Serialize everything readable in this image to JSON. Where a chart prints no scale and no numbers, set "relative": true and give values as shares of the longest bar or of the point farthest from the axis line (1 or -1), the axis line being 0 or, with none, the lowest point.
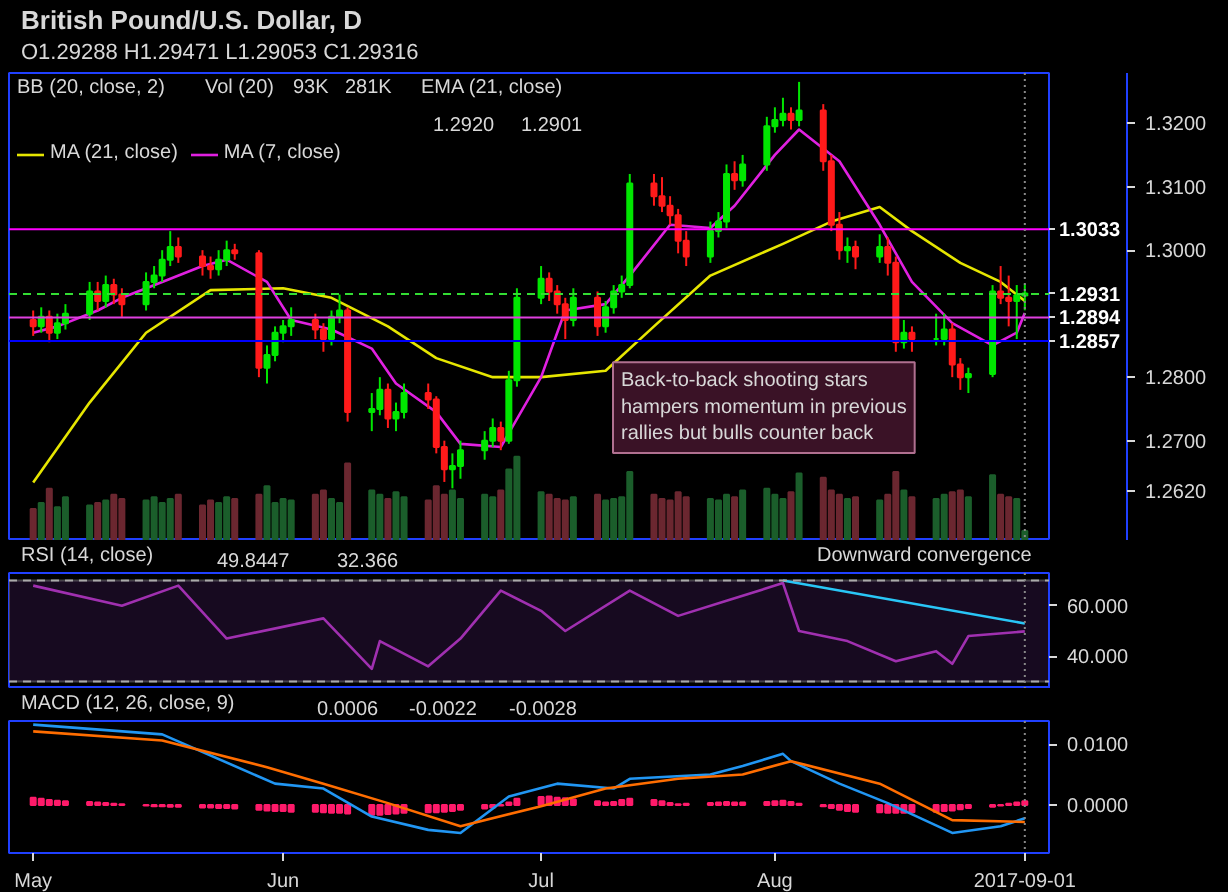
{
  "chart_data": [
    {
      "type": "candlestick",
      "title": "British Pound/U.S. Dollar, D",
      "subtitle": "O1.29288 H1.29471 L1.29053 C1.29316",
      "x": [
        "2017-05-01",
        "2017-05-02",
        "2017-05-03",
        "2017-05-04",
        "2017-05-05",
        "2017-05-08",
        "2017-05-09",
        "2017-05-10",
        "2017-05-11",
        "2017-05-12",
        "2017-05-15",
        "2017-05-16",
        "2017-05-17",
        "2017-05-18",
        "2017-05-19",
        "2017-05-22",
        "2017-05-23",
        "2017-05-24",
        "2017-05-25",
        "2017-05-26",
        "2017-05-29",
        "2017-05-30",
        "2017-05-31",
        "2017-06-01",
        "2017-06-02",
        "2017-06-05",
        "2017-06-06",
        "2017-06-07",
        "2017-06-08",
        "2017-06-09",
        "2017-06-12",
        "2017-06-13",
        "2017-06-14",
        "2017-06-15",
        "2017-06-16",
        "2017-06-19",
        "2017-06-20",
        "2017-06-21",
        "2017-06-22",
        "2017-06-23",
        "2017-06-26",
        "2017-06-27",
        "2017-06-28",
        "2017-06-29",
        "2017-06-30",
        "2017-07-03",
        "2017-07-04",
        "2017-07-05",
        "2017-07-06",
        "2017-07-07",
        "2017-07-10",
        "2017-07-11",
        "2017-07-12",
        "2017-07-13",
        "2017-07-14",
        "2017-07-17",
        "2017-07-18",
        "2017-07-19",
        "2017-07-20",
        "2017-07-21",
        "2017-07-24",
        "2017-07-25",
        "2017-07-26",
        "2017-07-27",
        "2017-07-28",
        "2017-07-31",
        "2017-08-01",
        "2017-08-02",
        "2017-08-03",
        "2017-08-04",
        "2017-08-07",
        "2017-08-08",
        "2017-08-09",
        "2017-08-10",
        "2017-08-11",
        "2017-08-14",
        "2017-08-15",
        "2017-08-16",
        "2017-08-17",
        "2017-08-18",
        "2017-08-21",
        "2017-08-22",
        "2017-08-23",
        "2017-08-24",
        "2017-08-25",
        "2017-08-28",
        "2017-08-29",
        "2017-08-30",
        "2017-08-31",
        "2017-09-01"
      ],
      "ohlc": [
        [
          1.289,
          1.2905,
          1.2865,
          1.288
        ],
        [
          1.288,
          1.291,
          1.287,
          1.2895
        ],
        [
          1.2895,
          1.2905,
          1.2855,
          1.287
        ],
        [
          1.287,
          1.29,
          1.286,
          1.2885
        ],
        [
          1.2885,
          1.2915,
          1.2875,
          1.29
        ],
        [
          1.29,
          1.295,
          1.289,
          1.2935
        ],
        [
          1.2935,
          1.295,
          1.2905,
          1.292
        ],
        [
          1.292,
          1.296,
          1.291,
          1.2945
        ],
        [
          1.2945,
          1.2955,
          1.2915,
          1.293
        ],
        [
          1.293,
          1.294,
          1.2895,
          1.2915
        ],
        [
          1.2915,
          1.2965,
          1.2905,
          1.295
        ],
        [
          1.295,
          1.2975,
          1.294,
          1.296
        ],
        [
          1.296,
          1.3,
          1.295,
          1.2985
        ],
        [
          1.2985,
          1.303,
          1.2975,
          1.3005
        ],
        [
          1.3005,
          1.302,
          1.298,
          1.299
        ],
        [
          1.299,
          1.3,
          1.296,
          1.2975
        ],
        [
          1.2975,
          1.299,
          1.2955,
          1.297
        ],
        [
          1.297,
          1.3,
          1.296,
          1.2985
        ],
        [
          1.2985,
          1.3015,
          1.2975,
          1.3
        ],
        [
          1.3,
          1.301,
          1.2985,
          1.2995
        ],
        [
          1.2995,
          1.3,
          1.28,
          1.2815
        ],
        [
          1.2815,
          1.285,
          1.279,
          1.2835
        ],
        [
          1.2835,
          1.288,
          1.2825,
          1.287
        ],
        [
          1.287,
          1.289,
          1.2855,
          1.288
        ],
        [
          1.288,
          1.291,
          1.2865,
          1.289
        ],
        [
          1.289,
          1.29,
          1.286,
          1.2875
        ],
        [
          1.2875,
          1.2885,
          1.284,
          1.286
        ],
        [
          1.286,
          1.2905,
          1.285,
          1.2895
        ],
        [
          1.2895,
          1.293,
          1.2885,
          1.2905
        ],
        [
          1.2905,
          1.291,
          1.273,
          1.2745
        ],
        [
          1.2745,
          1.2775,
          1.2715,
          1.275
        ],
        [
          1.275,
          1.28,
          1.274,
          1.278
        ],
        [
          1.278,
          1.279,
          1.272,
          1.2735
        ],
        [
          1.2735,
          1.276,
          1.2715,
          1.2745
        ],
        [
          1.2745,
          1.279,
          1.2735,
          1.2775
        ],
        [
          1.2775,
          1.279,
          1.275,
          1.2765
        ],
        [
          1.2765,
          1.277,
          1.268,
          1.269
        ],
        [
          1.269,
          1.27,
          1.2635,
          1.2655
        ],
        [
          1.2655,
          1.268,
          1.2625,
          1.266
        ],
        [
          1.266,
          1.27,
          1.264,
          1.2685
        ],
        [
          1.2685,
          1.2715,
          1.267,
          1.27
        ],
        [
          1.27,
          1.2735,
          1.269,
          1.272
        ],
        [
          1.272,
          1.273,
          1.2685,
          1.27
        ],
        [
          1.27,
          1.281,
          1.2695,
          1.2795
        ],
        [
          1.2795,
          1.294,
          1.2785,
          1.2925
        ],
        [
          1.2925,
          1.2975,
          1.2915,
          1.2955
        ],
        [
          1.2955,
          1.2965,
          1.292,
          1.2935
        ],
        [
          1.2935,
          1.2945,
          1.29,
          1.2915
        ],
        [
          1.2915,
          1.2925,
          1.286,
          1.289
        ],
        [
          1.289,
          1.294,
          1.288,
          1.2925
        ],
        [
          1.2925,
          1.2935,
          1.2865,
          1.288
        ],
        [
          1.288,
          1.292,
          1.287,
          1.291
        ],
        [
          1.291,
          1.2945,
          1.29,
          1.2935
        ],
        [
          1.2935,
          1.296,
          1.2925,
          1.2945
        ],
        [
          1.2945,
          1.312,
          1.294,
          1.3105
        ],
        [
          1.3105,
          1.312,
          1.307,
          1.3085
        ],
        [
          1.3085,
          1.3115,
          1.306,
          1.307
        ],
        [
          1.307,
          1.3085,
          1.304,
          1.3055
        ],
        [
          1.3055,
          1.3065,
          1.2995,
          1.3015
        ],
        [
          1.3015,
          1.303,
          1.2975,
          1.299
        ],
        [
          1.299,
          1.3045,
          1.298,
          1.303
        ],
        [
          1.303,
          1.306,
          1.302,
          1.3045
        ],
        [
          1.3045,
          1.3135,
          1.3035,
          1.312
        ],
        [
          1.312,
          1.314,
          1.3095,
          1.311
        ],
        [
          1.311,
          1.315,
          1.31,
          1.3135
        ],
        [
          1.3135,
          1.321,
          1.3125,
          1.3195
        ],
        [
          1.3195,
          1.3225,
          1.3185,
          1.3205
        ],
        [
          1.3205,
          1.324,
          1.3195,
          1.3215
        ],
        [
          1.3215,
          1.3225,
          1.319,
          1.3205
        ],
        [
          1.3205,
          1.3265,
          1.3195,
          1.322
        ],
        [
          1.322,
          1.323,
          1.3125,
          1.314
        ],
        [
          1.314,
          1.315,
          1.303,
          1.304
        ],
        [
          1.304,
          1.306,
          1.2985,
          1.3
        ],
        [
          1.3,
          1.302,
          1.298,
          1.3005
        ],
        [
          1.3005,
          1.3015,
          1.297,
          1.299
        ],
        [
          1.299,
          1.3025,
          1.298,
          1.3005
        ],
        [
          1.3005,
          1.302,
          1.296,
          1.298
        ],
        [
          1.298,
          1.299,
          1.284,
          1.2855
        ],
        [
          1.2855,
          1.289,
          1.2845,
          1.287
        ],
        [
          1.287,
          1.288,
          1.284,
          1.286
        ],
        [
          1.286,
          1.29,
          1.285,
          1.286
        ],
        [
          1.286,
          1.29,
          1.285,
          1.2875
        ],
        [
          1.2875,
          1.2885,
          1.28,
          1.282
        ],
        [
          1.282,
          1.283,
          1.278,
          1.28
        ],
        [
          1.28,
          1.2815,
          1.2775,
          1.2805
        ],
        [
          1.2805,
          1.2945,
          1.28,
          1.2935
        ],
        [
          1.2935,
          1.2975,
          1.2915,
          1.2925
        ],
        [
          1.2925,
          1.296,
          1.288,
          1.292
        ],
        [
          1.292,
          1.2945,
          1.286,
          1.2929
        ],
        [
          1.29288,
          1.29471,
          1.29053,
          1.29316
        ]
      ],
      "colors": [
        "#ff1a1a",
        "#00e600",
        "#ff1a1a",
        "#00e600",
        "#00e600",
        "#00e600",
        "#ff1a1a",
        "#00e600",
        "#ff1a1a",
        "#ff1a1a",
        "#00e600",
        "#00e600",
        "#00e600",
        "#00e600",
        "#ff1a1a",
        "#ff1a1a",
        "#ff1a1a",
        "#00e600",
        "#00e600",
        "#ff1a1a",
        "#ff1a1a",
        "#00e600",
        "#00e600",
        "#00e600",
        "#00e600",
        "#ff1a1a",
        "#ff1a1a",
        "#00e600",
        "#00e600",
        "#ff1a1a",
        "#00e600",
        "#00e600",
        "#ff1a1a",
        "#00e600",
        "#00e600",
        "#ff1a1a",
        "#ff1a1a",
        "#ff1a1a",
        "#00e600",
        "#00e600",
        "#00e600",
        "#00e600",
        "#ff1a1a",
        "#00e600",
        "#00e600",
        "#00e600",
        "#ff1a1a",
        "#ff1a1a",
        "#ff1a1a",
        "#00e600",
        "#ff1a1a",
        "#00e600",
        "#00e600",
        "#00e600",
        "#00e600",
        "#ff1a1a",
        "#ff1a1a",
        "#ff1a1a",
        "#ff1a1a",
        "#ff1a1a",
        "#00e600",
        "#00e600",
        "#00e600",
        "#ff1a1a",
        "#00e600",
        "#00e600",
        "#00e600",
        "#00e600",
        "#ff1a1a",
        "#00e600",
        "#ff1a1a",
        "#ff1a1a",
        "#ff1a1a",
        "#00e600",
        "#ff1a1a",
        "#00e600",
        "#ff1a1a",
        "#ff1a1a",
        "#00e600",
        "#ff1a1a",
        "#00e600",
        "#00e600",
        "#ff1a1a",
        "#ff1a1a",
        "#00e600",
        "#00e600",
        "#ff1a1a",
        "#ff1a1a",
        "#00e600",
        "#00e600"
      ],
      "series": [
        {
          "type": "line",
          "name": "MA (21, close)",
          "color": "#e6e600",
          "x": [
            "2017-05-01",
            "2017-05-08",
            "2017-05-15",
            "2017-05-23",
            "2017-06-01",
            "2017-06-07",
            "2017-06-14",
            "2017-06-20",
            "2017-06-27",
            "2017-07-03",
            "2017-07-11",
            "2017-07-17",
            "2017-07-24",
            "2017-08-02",
            "2017-08-08",
            "2017-08-14",
            "2017-08-18",
            "2017-08-24",
            "2017-08-29",
            "2017-09-01"
          ],
          "values": [
            1.2634,
            1.276,
            1.287,
            1.2937,
            1.294,
            1.2925,
            1.288,
            1.283,
            1.28,
            1.28,
            1.281,
            1.288,
            1.296,
            1.301,
            1.3045,
            1.3068,
            1.303,
            1.298,
            1.295,
            1.292
          ]
        },
        {
          "type": "line",
          "name": "MA (7, close)",
          "color": "#e020e0",
          "x": [
            "2017-05-01",
            "2017-05-04",
            "2017-05-09",
            "2017-05-12",
            "2017-05-17",
            "2017-05-22",
            "2017-05-25",
            "2017-05-30",
            "2017-06-02",
            "2017-06-07",
            "2017-06-12",
            "2017-06-15",
            "2017-06-20",
            "2017-06-23",
            "2017-06-28",
            "2017-07-03",
            "2017-07-06",
            "2017-07-11",
            "2017-07-14",
            "2017-07-19",
            "2017-07-24",
            "2017-07-27",
            "2017-08-01",
            "2017-08-04",
            "2017-08-09",
            "2017-08-14",
            "2017-08-18",
            "2017-08-23",
            "2017-08-28",
            "2017-08-31",
            "2017-09-01"
          ],
          "values": [
            1.287,
            1.288,
            1.2905,
            1.2925,
            1.295,
            1.2975,
            1.2985,
            1.295,
            1.289,
            1.2875,
            1.2845,
            1.279,
            1.2745,
            1.2695,
            1.269,
            1.28,
            1.2905,
            1.2915,
            1.296,
            1.304,
            1.3035,
            1.307,
            1.315,
            1.319,
            1.314,
            1.304,
            1.295,
            1.2885,
            1.285,
            1.287,
            1.2901
          ]
        }
      ],
      "xlim": [
        "2017-04-28",
        "2017-09-04"
      ],
      "ylim": [
        1.2542,
        1.3279
      ],
      "yticks": [
        {
          "value": 1.262,
          "label": "1.2620"
        },
        {
          "value": 1.27,
          "label": "1.2700"
        },
        {
          "value": 1.28,
          "label": "1.2800"
        },
        {
          "value": 1.3,
          "label": "1.3000"
        },
        {
          "value": 1.31,
          "label": "1.3100"
        },
        {
          "value": 1.32,
          "label": "1.3200"
        }
      ],
      "tick_labels": "y",
      "legend": "top left",
      "ref_lines": [
        {
          "axis": "y",
          "value": 1.3033,
          "label": "1.3033",
          "color": "#ff00ff",
          "line_style": "solid"
        },
        {
          "axis": "y",
          "value": 1.2931,
          "label": "1.2931",
          "color": "#33dd33",
          "line_style": "dashed"
        },
        {
          "axis": "y",
          "value": 1.2894,
          "label": "1.2894",
          "color": "#e040e0",
          "line_style": "solid"
        },
        {
          "axis": "y",
          "value": 1.2857,
          "label": "1.2857",
          "color": "#0000ff",
          "line_style": "solid"
        },
        {
          "axis": "x",
          "value": "2017-09-01",
          "color": "#888888",
          "line_style": "dotted"
        }
      ],
      "annotations": [
        "BB (20, close, 2)",
        "EMA (21, close)",
        "1.2920",
        "1.2901",
        "Back-to-back shooting stars hampers momentum in previous rallies but bulls counter back"
      ]
    },
    {
      "type": "bar",
      "relative": true,
      "tick_labels": false,
      "xlim": [
        "2017-04-28",
        "2017-09-04"
      ],
      "x": [
        "2017-05-01",
        "2017-05-02",
        "2017-05-03",
        "2017-05-04",
        "2017-05-05",
        "2017-05-08",
        "2017-05-09",
        "2017-05-10",
        "2017-05-11",
        "2017-05-12",
        "2017-05-15",
        "2017-05-16",
        "2017-05-17",
        "2017-05-18",
        "2017-05-19",
        "2017-05-22",
        "2017-05-23",
        "2017-05-24",
        "2017-05-25",
        "2017-05-26",
        "2017-05-29",
        "2017-05-30",
        "2017-05-31",
        "2017-06-01",
        "2017-06-02",
        "2017-06-05",
        "2017-06-06",
        "2017-06-07",
        "2017-06-08",
        "2017-06-09",
        "2017-06-12",
        "2017-06-13",
        "2017-06-14",
        "2017-06-15",
        "2017-06-16",
        "2017-06-19",
        "2017-06-20",
        "2017-06-21",
        "2017-06-22",
        "2017-06-23",
        "2017-06-26",
        "2017-06-27",
        "2017-06-28",
        "2017-06-29",
        "2017-06-30",
        "2017-07-03",
        "2017-07-04",
        "2017-07-05",
        "2017-07-06",
        "2017-07-07",
        "2017-07-10",
        "2017-07-11",
        "2017-07-12",
        "2017-07-13",
        "2017-07-14",
        "2017-07-17",
        "2017-07-18",
        "2017-07-19",
        "2017-07-20",
        "2017-07-21",
        "2017-07-24",
        "2017-07-25",
        "2017-07-26",
        "2017-07-27",
        "2017-07-28",
        "2017-07-31",
        "2017-08-01",
        "2017-08-02",
        "2017-08-03",
        "2017-08-04",
        "2017-08-07",
        "2017-08-08",
        "2017-08-09",
        "2017-08-10",
        "2017-08-11",
        "2017-08-14",
        "2017-08-15",
        "2017-08-16",
        "2017-08-17",
        "2017-08-18",
        "2017-08-21",
        "2017-08-22",
        "2017-08-23",
        "2017-08-24",
        "2017-08-25",
        "2017-08-28",
        "2017-08-29",
        "2017-08-30",
        "2017-08-31",
        "2017-09-01"
      ],
      "values": [
        0.38,
        0.45,
        0.62,
        0.4,
        0.52,
        0.42,
        0.45,
        0.48,
        0.55,
        0.5,
        0.48,
        0.52,
        0.45,
        0.5,
        0.55,
        0.42,
        0.48,
        0.45,
        0.52,
        0.5,
        0.55,
        0.65,
        0.45,
        0.5,
        0.48,
        0.55,
        0.6,
        0.5,
        0.45,
        0.92,
        0.6,
        0.55,
        0.5,
        0.58,
        0.52,
        0.48,
        0.65,
        0.55,
        0.6,
        0.5,
        0.55,
        0.52,
        0.6,
        0.85,
        1.0,
        0.58,
        0.55,
        0.5,
        0.48,
        0.52,
        0.55,
        0.48,
        0.5,
        0.52,
        0.82,
        0.55,
        0.5,
        0.48,
        0.58,
        0.52,
        0.5,
        0.48,
        0.55,
        0.52,
        0.6,
        0.62,
        0.55,
        0.5,
        0.58,
        0.8,
        0.75,
        0.6,
        0.55,
        0.5,
        0.52,
        0.48,
        0.55,
        0.82,
        0.6,
        0.52,
        0.5,
        0.55,
        0.58,
        0.6,
        0.52,
        0.78,
        0.55,
        0.52,
        0.5,
        0.12
      ],
      "colors": [
        "#6b2730",
        "#1b5e2b",
        "#6b2730",
        "#1b5e2b",
        "#1b5e2b",
        "#1b5e2b",
        "#6b2730",
        "#1b5e2b",
        "#6b2730",
        "#6b2730",
        "#1b5e2b",
        "#1b5e2b",
        "#1b5e2b",
        "#1b5e2b",
        "#6b2730",
        "#6b2730",
        "#6b2730",
        "#1b5e2b",
        "#1b5e2b",
        "#6b2730",
        "#6b2730",
        "#1b5e2b",
        "#1b5e2b",
        "#1b5e2b",
        "#1b5e2b",
        "#6b2730",
        "#6b2730",
        "#1b5e2b",
        "#1b5e2b",
        "#6b2730",
        "#1b5e2b",
        "#1b5e2b",
        "#6b2730",
        "#1b5e2b",
        "#1b5e2b",
        "#6b2730",
        "#6b2730",
        "#6b2730",
        "#1b5e2b",
        "#1b5e2b",
        "#1b5e2b",
        "#1b5e2b",
        "#6b2730",
        "#1b5e2b",
        "#1b5e2b",
        "#1b5e2b",
        "#6b2730",
        "#6b2730",
        "#6b2730",
        "#1b5e2b",
        "#6b2730",
        "#1b5e2b",
        "#1b5e2b",
        "#1b5e2b",
        "#1b5e2b",
        "#6b2730",
        "#6b2730",
        "#6b2730",
        "#6b2730",
        "#6b2730",
        "#1b5e2b",
        "#1b5e2b",
        "#1b5e2b",
        "#6b2730",
        "#1b5e2b",
        "#1b5e2b",
        "#1b5e2b",
        "#1b5e2b",
        "#6b2730",
        "#1b5e2b",
        "#6b2730",
        "#6b2730",
        "#6b2730",
        "#1b5e2b",
        "#6b2730",
        "#1b5e2b",
        "#6b2730",
        "#6b2730",
        "#1b5e2b",
        "#6b2730",
        "#1b5e2b",
        "#1b5e2b",
        "#6b2730",
        "#6b2730",
        "#1b5e2b",
        "#1b5e2b",
        "#6b2730",
        "#6b2730",
        "#1b5e2b",
        "#1b5e2b"
      ],
      "annotations": [
        "Vol (20)",
        "93K",
        "281K"
      ]
    },
    {
      "type": "line",
      "title": "RSI (14, close)",
      "xlim": [
        "2017-04-28",
        "2017-09-04"
      ],
      "ylim": [
        27,
        73
      ],
      "yticks": [
        {
          "value": 40,
          "label": "40.000"
        },
        {
          "value": 60,
          "label": "60.000"
        }
      ],
      "tick_labels": "y",
      "series": [
        {
          "color": "#a030b0",
          "x": [
            "2017-05-01",
            "2017-05-12",
            "2017-05-19",
            "2017-05-25",
            "2017-06-06",
            "2017-06-12",
            "2017-06-13",
            "2017-06-19",
            "2017-06-23",
            "2017-06-28",
            "2017-07-03",
            "2017-07-06",
            "2017-07-14",
            "2017-07-20",
            "2017-07-26",
            "2017-08-02",
            "2017-08-04",
            "2017-08-10",
            "2017-08-16",
            "2017-08-21",
            "2017-08-23",
            "2017-08-25",
            "2017-09-01"
          ],
          "values": [
            68,
            60,
            68,
            47,
            55,
            35,
            46,
            36,
            47,
            66,
            58,
            50,
            66,
            56,
            62,
            69,
            50,
            46,
            38,
            42,
            37,
            48,
            49.8447
          ]
        },
        {
          "color": "#29c6f6",
          "x": [
            "2017-08-02",
            "2017-09-01"
          ],
          "values": [
            70,
            53
          ]
        }
      ],
      "bands": [
        {
          "axis": "y",
          "from": 30,
          "to": 70,
          "color": "#170a20"
        }
      ],
      "ref_lines": [
        {
          "axis": "y",
          "value": 70,
          "color": "#aaaaaa",
          "line_style": "dashed"
        },
        {
          "axis": "y",
          "value": 30,
          "color": "#aaaaaa",
          "line_style": "dashed"
        },
        {
          "axis": "x",
          "value": "2017-09-01",
          "color": "#888888",
          "line_style": "dotted"
        }
      ],
      "annotations": [
        "49.8447",
        "32.366",
        "Downward convergence"
      ]
    },
    {
      "type": "line",
      "title": "MACD (12, 26, close, 9)",
      "xlim": [
        "2017-04-28",
        "2017-09-04"
      ],
      "ylim": [
        -0.0079,
        0.0138
      ],
      "xticks": [
        {
          "value": "2017-05-01",
          "label": "May"
        },
        {
          "value": "2017-06-01",
          "label": "Jun"
        },
        {
          "value": "2017-07-03",
          "label": "Jul"
        },
        {
          "value": "2017-08-01",
          "label": "Aug"
        },
        {
          "value": "2017-09-01",
          "label": "2017-09-01"
        }
      ],
      "yticks": [
        {
          "value": 0,
          "label": "0.0000"
        },
        {
          "value": 0.01,
          "label": "0.0100"
        }
      ],
      "x": [
        "2017-05-01",
        "2017-05-02",
        "2017-05-03",
        "2017-05-04",
        "2017-05-05",
        "2017-05-08",
        "2017-05-09",
        "2017-05-10",
        "2017-05-11",
        "2017-05-12",
        "2017-05-15",
        "2017-05-16",
        "2017-05-17",
        "2017-05-18",
        "2017-05-19",
        "2017-05-22",
        "2017-05-23",
        "2017-05-24",
        "2017-05-25",
        "2017-05-26",
        "2017-05-29",
        "2017-05-30",
        "2017-05-31",
        "2017-06-01",
        "2017-06-02",
        "2017-06-05",
        "2017-06-06",
        "2017-06-07",
        "2017-06-08",
        "2017-06-09",
        "2017-06-12",
        "2017-06-13",
        "2017-06-14",
        "2017-06-15",
        "2017-06-16",
        "2017-06-19",
        "2017-06-20",
        "2017-06-21",
        "2017-06-22",
        "2017-06-23",
        "2017-06-26",
        "2017-06-27",
        "2017-06-28",
        "2017-06-29",
        "2017-06-30",
        "2017-07-03",
        "2017-07-04",
        "2017-07-05",
        "2017-07-06",
        "2017-07-07",
        "2017-07-10",
        "2017-07-11",
        "2017-07-12",
        "2017-07-13",
        "2017-07-14",
        "2017-07-17",
        "2017-07-18",
        "2017-07-19",
        "2017-07-20",
        "2017-07-21",
        "2017-07-24",
        "2017-07-25",
        "2017-07-26",
        "2017-07-27",
        "2017-07-28",
        "2017-07-31",
        "2017-08-01",
        "2017-08-02",
        "2017-08-03",
        "2017-08-04",
        "2017-08-07",
        "2017-08-08",
        "2017-08-09",
        "2017-08-10",
        "2017-08-11",
        "2017-08-14",
        "2017-08-15",
        "2017-08-16",
        "2017-08-17",
        "2017-08-18",
        "2017-08-21",
        "2017-08-22",
        "2017-08-23",
        "2017-08-24",
        "2017-08-25",
        "2017-08-28",
        "2017-08-29",
        "2017-08-30",
        "2017-08-31",
        "2017-09-01"
      ],
      "series": [
        {
          "type": "bar",
          "color": "#ff1a6a",
          "values": [
            0.0012,
            0.001,
            0.0008,
            0.0007,
            0.0006,
            0.0005,
            0.0004,
            0.0003,
            0.0002,
            0.0001,
            -0.0001,
            -0.0002,
            -0.0002,
            -0.0003,
            -0.0003,
            -0.0004,
            -0.0004,
            -0.0005,
            -0.0005,
            -0.0006,
            -0.0008,
            -0.0009,
            -0.001,
            -0.001,
            -0.0011,
            -0.0011,
            -0.0012,
            -0.0013,
            -0.0013,
            -0.0014,
            -0.0016,
            -0.0016,
            -0.0015,
            -0.0014,
            -0.0013,
            -0.0012,
            -0.0012,
            -0.0011,
            -0.001,
            -0.0008,
            -0.0006,
            -0.0004,
            -0.0001,
            0.0004,
            0.001,
            0.0013,
            0.0014,
            0.0012,
            0.0011,
            0.0009,
            0.0006,
            0.0004,
            0.0005,
            0.0008,
            0.001,
            0.0008,
            0.0006,
            0.0003,
            0.0001,
            0.0002,
            0.0003,
            0.0004,
            0.0005,
            0.0004,
            0.0004,
            0.0005,
            0.0006,
            0.0007,
            0.0005,
            0.0002,
            -0.0002,
            -0.0005,
            -0.0008,
            -0.001,
            -0.0011,
            -0.0012,
            -0.0013,
            -0.0013,
            -0.0013,
            -0.0012,
            -0.0011,
            -0.001,
            -0.0009,
            -0.0007,
            -0.0005,
            -0.0003,
            -0.0001,
            0.0002,
            0.0004,
            0.0006
          ]
        },
        {
          "type": "line",
          "color": "#2196f3",
          "x": [
            "2017-05-01",
            "2017-05-17",
            "2017-05-31",
            "2017-06-06",
            "2017-06-12",
            "2017-06-19",
            "2017-06-23",
            "2017-06-29",
            "2017-07-05",
            "2017-07-12",
            "2017-07-14",
            "2017-07-24",
            "2017-07-28",
            "2017-08-02",
            "2017-08-03",
            "2017-08-09",
            "2017-08-15",
            "2017-08-23",
            "2017-08-29",
            "2017-09-01"
          ],
          "values": [
            0.0132,
            0.0116,
            0.0035,
            0.0027,
            -0.0019,
            -0.0041,
            -0.0046,
            0.0014,
            0.0035,
            0.0027,
            0.0043,
            0.005,
            0.0064,
            0.0084,
            0.0072,
            0.0035,
            0.0003,
            -0.0046,
            -0.0035,
            -0.0022
          ]
        },
        {
          "type": "line",
          "color": "#ff6d00",
          "x": [
            "2017-05-01",
            "2017-05-17",
            "2017-05-30",
            "2017-06-06",
            "2017-06-14",
            "2017-06-23",
            "2017-07-03",
            "2017-07-11",
            "2017-07-20",
            "2017-07-28",
            "2017-08-03",
            "2017-08-14",
            "2017-08-23",
            "2017-09-01"
          ],
          "values": [
            0.0121,
            0.0106,
            0.0062,
            0.0035,
            0.0003,
            -0.0035,
            -0.0002,
            0.0027,
            0.0043,
            0.005,
            0.0072,
            0.0035,
            -0.0025,
            -0.0028
          ]
        }
      ],
      "ref_lines": [
        {
          "axis": "x",
          "value": "2017-09-01",
          "color": "#888888",
          "line_style": "dotted"
        }
      ],
      "annotations": [
        "0.0006",
        "-0.0022",
        "-0.0028"
      ]
    }
  ]
}
